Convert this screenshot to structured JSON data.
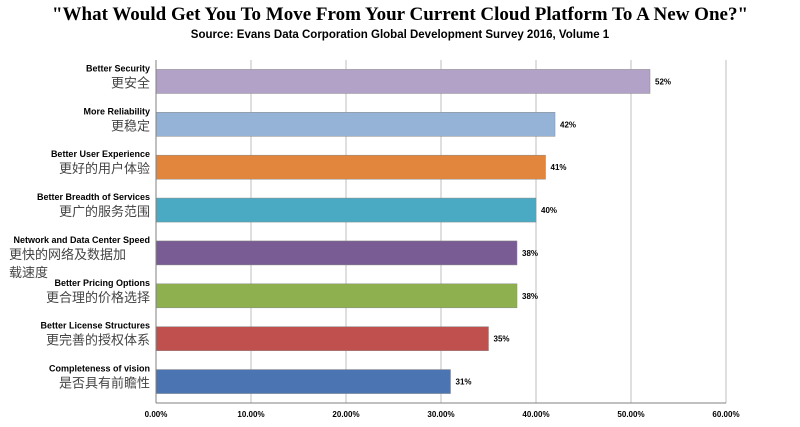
{
  "chart_data": {
    "type": "bar",
    "orientation": "horizontal",
    "title": "\"What Would Get You To Move From Your Current Cloud Platform To A New One?\"",
    "subtitle": "Source: Evans Data Corporation  Global Development Survey 2016, Volume 1",
    "categories": [
      {
        "en": "Better Security",
        "zh": [
          "更安全"
        ]
      },
      {
        "en": "More Reliability",
        "zh": [
          "更稳定"
        ]
      },
      {
        "en": "Better User Experience",
        "zh": [
          "更好的用户体验"
        ]
      },
      {
        "en": "Better Breadth of Services",
        "zh": [
          "更广的服务范围"
        ]
      },
      {
        "en": "Network and Data Center Speed",
        "zh": [
          "更快的网络及数据加",
          "载速度"
        ]
      },
      {
        "en": "Better Pricing Options",
        "zh": [
          "更合理的价格选择"
        ]
      },
      {
        "en": "Better License Structures",
        "zh": [
          "更完善的授权体系"
        ]
      },
      {
        "en": "Completeness of vision",
        "zh": [
          "是否具有前瞻性"
        ]
      }
    ],
    "values": [
      52,
      42,
      41,
      40,
      38,
      38,
      35,
      31
    ],
    "value_labels": [
      "52%",
      "42%",
      "41%",
      "40%",
      "38%",
      "38%",
      "35%",
      "31%"
    ],
    "colors": [
      "#b3a2c7",
      "#95b3d7",
      "#e2863e",
      "#4aaac4",
      "#7a5c95",
      "#8fb04f",
      "#c0504d",
      "#4a74b2"
    ],
    "xlim": [
      0,
      60
    ],
    "xticks": [
      "0.00%",
      "10.00%",
      "20.00%",
      "30.00%",
      "40.00%",
      "50.00%",
      "60.00%"
    ],
    "xtick_values": [
      0,
      10,
      20,
      30,
      40,
      50,
      60
    ],
    "grid": true,
    "gridline_color": "#bfbfbf"
  }
}
